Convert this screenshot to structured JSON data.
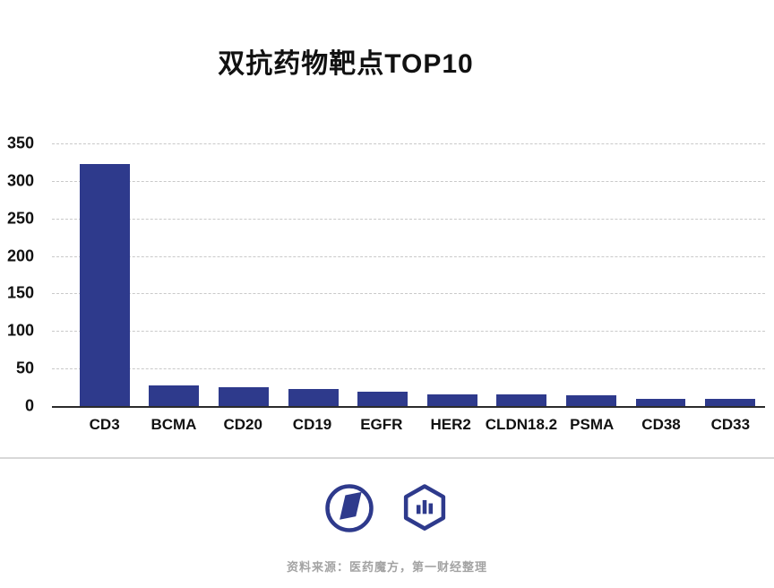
{
  "title": "双抗药物靶点TOP10",
  "chart_data": {
    "type": "bar",
    "title": "双抗药物靶点TOP10",
    "categories": [
      "CD3",
      "BCMA",
      "CD20",
      "CD19",
      "EGFR",
      "HER2",
      "CLDN18.2",
      "PSMA",
      "CD38",
      "CD33"
    ],
    "values": [
      322,
      27,
      25,
      23,
      19,
      16,
      15,
      14,
      10,
      9
    ],
    "xlabel": "",
    "ylabel": "",
    "ylim": [
      0,
      350
    ],
    "yticks": [
      0,
      50,
      100,
      150,
      200,
      250,
      300,
      350
    ],
    "grid": "dashed horizontal gridlines",
    "legend": "none"
  },
  "colors": {
    "bar": "#2e3a8c",
    "axis": "#2b2b2b",
    "gridline": "#c9c9c9",
    "divider": "#d8d8d8",
    "logo": "#2e3a8c",
    "source_text": "#a3a3a3"
  },
  "footer": {
    "logos": [
      "circle-emblem-logo",
      "hexagon-chart-logo"
    ],
    "source_text": "资料来源：医药魔方，第一财经整理"
  }
}
